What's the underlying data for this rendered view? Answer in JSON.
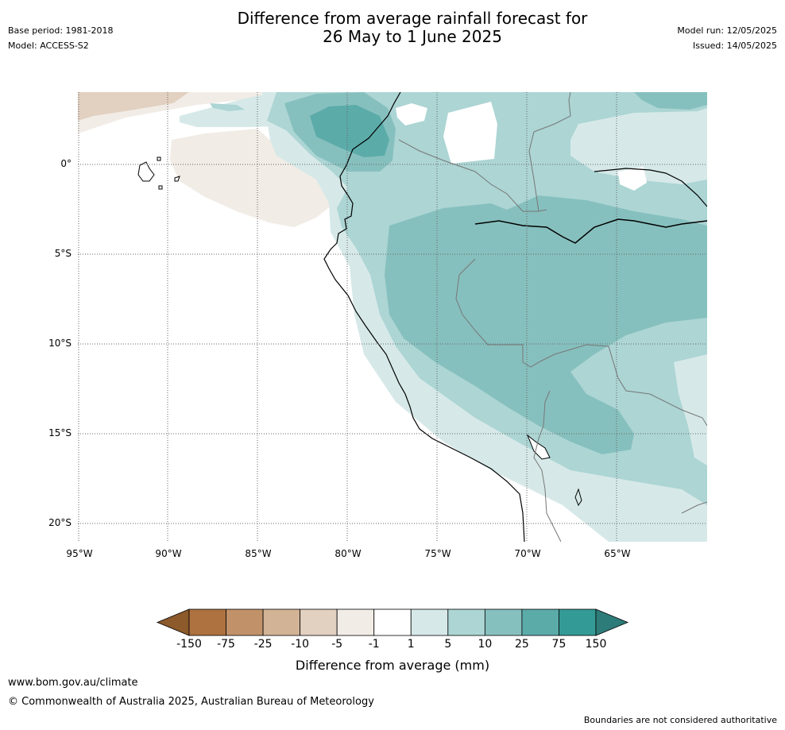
{
  "header": {
    "title_line1": "Difference from average rainfall forecast for",
    "title_line2": "26 May to 1 June 2025",
    "base_period": "Base period: 1981-2018",
    "model": "Model: ACCESS-S2",
    "model_run": "Model run: 12/05/2025",
    "issued": "Issued: 14/05/2025"
  },
  "map": {
    "lat_labels": [
      "0°",
      "5°S",
      "10°S",
      "15°S",
      "20°S"
    ],
    "lon_labels": [
      "95°W",
      "90°W",
      "85°W",
      "80°W",
      "75°W",
      "70°W",
      "65°W"
    ],
    "ocean_color": "#ffffff",
    "land_color": "#ffffff",
    "coastline_color": "#000000",
    "border_color": "#777777",
    "grid_style": "dotted"
  },
  "legend": {
    "title": "Difference from average (mm)",
    "tick_labels": [
      "-150",
      "-75",
      "-25",
      "-10",
      "-5",
      "-1",
      "1",
      "5",
      "10",
      "25",
      "75",
      "150"
    ],
    "colors": [
      "#8c5a2b",
      "#ad7240",
      "#c1926a",
      "#d3b396",
      "#e2d0c0",
      "#f1ece6",
      "#ffffff",
      "#d6e9e8",
      "#acd5d4",
      "#86c0be",
      "#5baba9",
      "#349a96",
      "#2e7c79"
    ]
  },
  "footer": {
    "website": "www.bom.gov.au/climate",
    "copyright": "© Commonwealth of Australia 2025, Australian Bureau of Meteorology",
    "disclaimer": "Boundaries are not considered authoritative"
  }
}
